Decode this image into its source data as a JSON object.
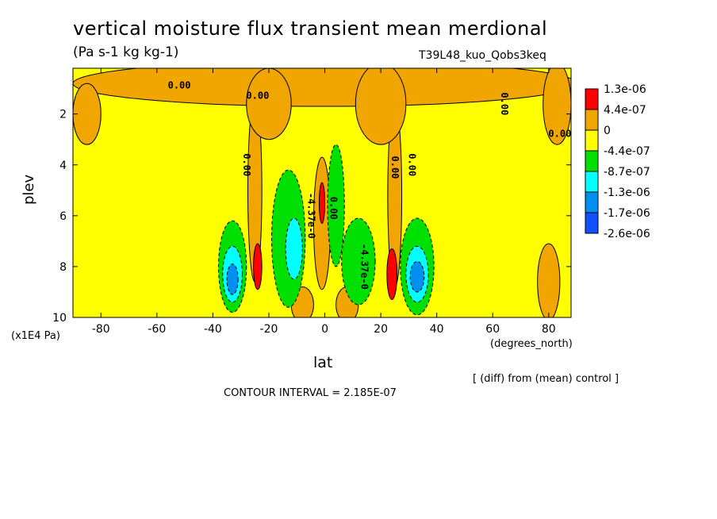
{
  "title": "vertical moisture flux transient mean merdional",
  "units": "(Pa s-1 kg kg-1)",
  "run_label": "T39L48_kuo_Qobs3keq",
  "y_units": "(x1E4 Pa)",
  "x_units": "(degrees_north)",
  "diff_note": "[ (diff) from (mean) control ]",
  "contour_interval": "CONTOUR INTERVAL = 2.185E-07",
  "colors": {
    "red": "#ff0000",
    "orange": "#f0a500",
    "yellow": "#ffff00",
    "green": "#00e000",
    "cyan": "#00ffff",
    "blue": "#0090f0",
    "darkblue": "#1050ff"
  },
  "chart_data": {
    "type": "heatmap",
    "title": "vertical moisture flux transient mean merdional",
    "xlabel": "lat",
    "ylabel": "plev",
    "xlim": [
      -90,
      88
    ],
    "ylim": [
      10,
      0.2
    ],
    "x_ticks": [
      -80,
      -60,
      -40,
      -20,
      0,
      20,
      40,
      60,
      80
    ],
    "y_ticks": [
      2,
      4,
      6,
      8,
      10
    ],
    "legend": [
      {
        "label": "1.3e-06",
        "color": "#ff0000"
      },
      {
        "label": "4.4e-07",
        "color": "#f0a500"
      },
      {
        "label": "0",
        "color": "#ffff00"
      },
      {
        "label": "-4.4e-07",
        "color": "#00e000"
      },
      {
        "label": "-8.7e-07",
        "color": "#00ffff"
      },
      {
        "label": "-1.3e-06",
        "color": "#0090f0"
      },
      {
        "label": "-1.7e-06",
        "color": "#1050ff"
      },
      {
        "label": "-2.6e-06",
        "color": ""
      }
    ],
    "contour_labels": [
      {
        "text": "0.00",
        "lat": -52,
        "plev": 1.0
      },
      {
        "text": "0.00",
        "lat": -24,
        "plev": 1.4
      },
      {
        "text": "0.00",
        "lat": 63,
        "plev": 1.6
      },
      {
        "text": "0.00",
        "lat": 84,
        "plev": 2.9
      },
      {
        "text": "0.00",
        "lat": -29,
        "plev": 4.0
      },
      {
        "text": "0.00",
        "lat": 24,
        "plev": 4.1
      },
      {
        "text": "0.00",
        "lat": 30,
        "plev": 4.0
      },
      {
        "text": "0.00",
        "lat": 2,
        "plev": 5.7
      },
      {
        "text": "-4.37e-0",
        "lat": -6,
        "plev": 6.0
      },
      {
        "text": "-4.37e-0",
        "lat": 13,
        "plev": 8.0
      }
    ],
    "regions": [
      {
        "level": "orange",
        "cx": 0,
        "cy": 0.8,
        "rx": 90,
        "ry": 0.9
      },
      {
        "level": "orange",
        "cx": -85,
        "cy": 2.0,
        "rx": 5,
        "ry": 1.2
      },
      {
        "level": "orange",
        "cx": -25,
        "cy": 5.0,
        "rx": 2.5,
        "ry": 3.6
      },
      {
        "level": "orange",
        "cx": 25,
        "cy": 5.2,
        "rx": 2.5,
        "ry": 3.6
      },
      {
        "level": "orange",
        "cx": -20,
        "cy": 1.6,
        "rx": 8,
        "ry": 1.4
      },
      {
        "level": "orange",
        "cx": 20,
        "cy": 1.6,
        "rx": 9,
        "ry": 1.6
      },
      {
        "level": "orange",
        "cx": 83,
        "cy": 1.6,
        "rx": 5,
        "ry": 1.6
      },
      {
        "level": "orange",
        "cx": 80,
        "cy": 8.6,
        "rx": 4,
        "ry": 1.5
      },
      {
        "level": "orange",
        "cx": -8,
        "cy": 9.5,
        "rx": 4,
        "ry": 0.7
      },
      {
        "level": "orange",
        "cx": 8,
        "cy": 9.5,
        "rx": 4,
        "ry": 0.7
      },
      {
        "level": "orange",
        "cx": -1,
        "cy": 6.3,
        "rx": 3,
        "ry": 2.6
      },
      {
        "level": "green",
        "cx": -33,
        "cy": 8.0,
        "rx": 5,
        "ry": 1.8
      },
      {
        "level": "green",
        "cx": 33,
        "cy": 8.0,
        "rx": 6,
        "ry": 1.9
      },
      {
        "level": "green",
        "cx": -13,
        "cy": 6.9,
        "rx": 6,
        "ry": 2.7
      },
      {
        "level": "green",
        "cx": 4,
        "cy": 5.6,
        "rx": 3,
        "ry": 2.4
      },
      {
        "level": "green",
        "cx": 12,
        "cy": 7.8,
        "rx": 6,
        "ry": 1.7
      },
      {
        "level": "cyan",
        "cx": -33,
        "cy": 8.3,
        "rx": 3.5,
        "ry": 1.1
      },
      {
        "level": "cyan",
        "cx": 33,
        "cy": 8.3,
        "rx": 4,
        "ry": 1.1
      },
      {
        "level": "cyan",
        "cx": -11,
        "cy": 7.3,
        "rx": 3,
        "ry": 1.2
      },
      {
        "level": "blue",
        "cx": -33,
        "cy": 8.5,
        "rx": 2,
        "ry": 0.6
      },
      {
        "level": "blue",
        "cx": 33,
        "cy": 8.4,
        "rx": 2.5,
        "ry": 0.6
      },
      {
        "level": "red",
        "cx": -24,
        "cy": 8.0,
        "rx": 1.5,
        "ry": 0.9
      },
      {
        "level": "red",
        "cx": 24,
        "cy": 8.3,
        "rx": 1.8,
        "ry": 1.0
      },
      {
        "level": "red",
        "cx": -1,
        "cy": 5.5,
        "rx": 1,
        "ry": 0.8
      }
    ]
  }
}
